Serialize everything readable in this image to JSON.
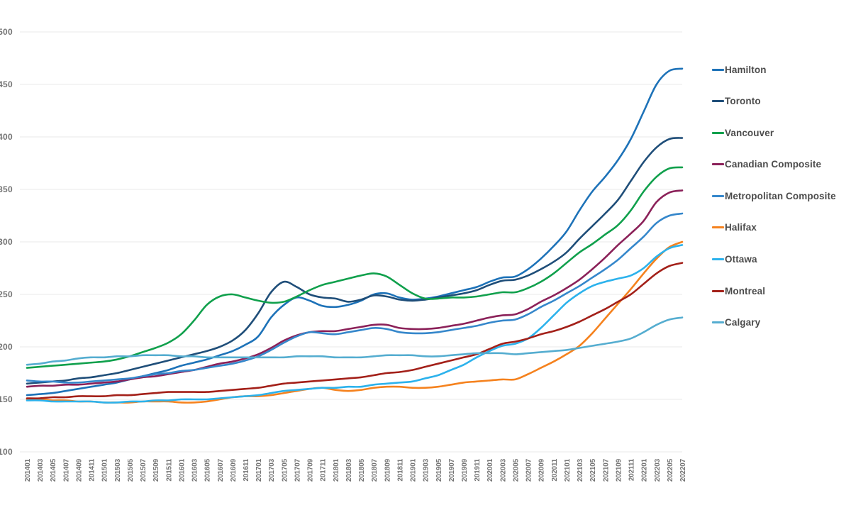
{
  "chart_data": {
    "type": "line",
    "title": "",
    "xlabel": "",
    "ylabel": "",
    "ylim": [
      100,
      500
    ],
    "y_ticks": [
      100,
      150,
      200,
      250,
      300,
      350,
      400,
      450,
      500
    ],
    "grid": "horizontal",
    "legend_position": "right",
    "axis_tick_color": "#757575",
    "gridline_color": "#e9e9e9",
    "x_tick_labels": [
      "201401",
      "201403",
      "201405",
      "201407",
      "201409",
      "201411",
      "201501",
      "201503",
      "201505",
      "201507",
      "201509",
      "201511",
      "201601",
      "201603",
      "201605",
      "201607",
      "201609",
      "201611",
      "201701",
      "201703",
      "201705",
      "201707",
      "201709",
      "201711",
      "201801",
      "201803",
      "201805",
      "201807",
      "201809",
      "201811",
      "201901",
      "201903",
      "201905",
      "201907",
      "201909",
      "201911",
      "202001",
      "202003",
      "202005",
      "202007",
      "202009",
      "202011",
      "202101",
      "202103",
      "202105",
      "202107",
      "202109",
      "202111",
      "202201",
      "202203",
      "202205",
      "202207"
    ],
    "series": [
      {
        "name": "Hamilton",
        "color": "#1d72b8",
        "values": [
          154,
          155,
          156,
          158,
          160,
          162,
          164,
          166,
          169,
          172,
          175,
          178,
          182,
          185,
          188,
          192,
          196,
          202,
          210,
          228,
          240,
          247,
          244,
          239,
          238,
          240,
          244,
          250,
          251,
          247,
          245,
          246,
          248,
          251,
          254,
          257,
          262,
          266,
          267,
          274,
          284,
          296,
          310,
          330,
          348,
          362,
          378,
          398,
          424,
          450,
          463,
          465
        ]
      },
      {
        "name": "Toronto",
        "color": "#1f4e79",
        "values": [
          165,
          166,
          167,
          168,
          170,
          171,
          173,
          175,
          178,
          181,
          184,
          187,
          190,
          193,
          196,
          200,
          206,
          216,
          232,
          252,
          262,
          257,
          250,
          247,
          246,
          243,
          245,
          249,
          248,
          245,
          244,
          245,
          247,
          249,
          251,
          254,
          259,
          263,
          264,
          268,
          274,
          281,
          290,
          303,
          315,
          327,
          340,
          358,
          376,
          390,
          398,
          399
        ]
      },
      {
        "name": "Vancouver",
        "color": "#10a04c",
        "values": [
          180,
          181,
          182,
          183,
          184,
          185,
          186,
          188,
          191,
          195,
          199,
          204,
          212,
          225,
          240,
          248,
          250,
          247,
          244,
          242,
          243,
          248,
          254,
          259,
          262,
          265,
          268,
          270,
          267,
          259,
          251,
          246,
          246,
          247,
          247,
          248,
          250,
          252,
          252,
          256,
          262,
          270,
          280,
          290,
          298,
          307,
          316,
          330,
          348,
          362,
          370,
          371
        ]
      },
      {
        "name": "Canadian Composite",
        "color": "#8b2159",
        "values": [
          162,
          163,
          163,
          164,
          164,
          165,
          166,
          167,
          169,
          171,
          172,
          174,
          176,
          178,
          181,
          184,
          186,
          189,
          193,
          199,
          206,
          211,
          214,
          215,
          215,
          217,
          219,
          221,
          221,
          218,
          217,
          217,
          218,
          220,
          222,
          225,
          228,
          230,
          231,
          236,
          243,
          249,
          256,
          264,
          274,
          285,
          297,
          308,
          320,
          338,
          347,
          349
        ]
      },
      {
        "name": "Metropolitan Composite",
        "color": "#3587cb",
        "values": [
          168,
          167,
          167,
          166,
          166,
          167,
          168,
          169,
          170,
          172,
          174,
          175,
          177,
          178,
          180,
          182,
          184,
          187,
          191,
          197,
          204,
          210,
          214,
          213,
          212,
          214,
          216,
          218,
          217,
          214,
          213,
          213,
          214,
          216,
          218,
          220,
          223,
          225,
          226,
          231,
          238,
          244,
          251,
          258,
          266,
          274,
          283,
          294,
          305,
          318,
          325,
          327
        ]
      },
      {
        "name": "Halifax",
        "color": "#f5821e",
        "values": [
          150,
          150,
          149,
          149,
          148,
          148,
          147,
          147,
          147,
          148,
          148,
          148,
          147,
          147,
          148,
          150,
          152,
          153,
          153,
          154,
          156,
          158,
          160,
          161,
          159,
          158,
          159,
          161,
          162,
          162,
          161,
          161,
          162,
          164,
          166,
          167,
          168,
          169,
          169,
          174,
          180,
          186,
          193,
          201,
          213,
          227,
          241,
          255,
          270,
          284,
          295,
          300
        ]
      },
      {
        "name": "Ottawa",
        "color": "#2cb2ec",
        "values": [
          149,
          149,
          148,
          148,
          148,
          148,
          147,
          147,
          148,
          148,
          149,
          149,
          150,
          150,
          150,
          151,
          152,
          153,
          154,
          156,
          158,
          159,
          160,
          161,
          161,
          162,
          162,
          164,
          165,
          166,
          167,
          170,
          173,
          178,
          183,
          190,
          196,
          201,
          203,
          208,
          218,
          230,
          242,
          251,
          258,
          262,
          265,
          268,
          275,
          286,
          294,
          297
        ]
      },
      {
        "name": "Montreal",
        "color": "#a32019",
        "values": [
          151,
          151,
          152,
          152,
          153,
          153,
          153,
          154,
          154,
          155,
          156,
          157,
          157,
          157,
          157,
          158,
          159,
          160,
          161,
          163,
          165,
          166,
          167,
          168,
          169,
          170,
          171,
          173,
          175,
          176,
          178,
          181,
          184,
          187,
          190,
          193,
          198,
          203,
          205,
          208,
          212,
          215,
          219,
          224,
          230,
          236,
          243,
          250,
          260,
          270,
          277,
          280
        ]
      },
      {
        "name": "Calgary",
        "color": "#55add0",
        "values": [
          183,
          184,
          186,
          187,
          189,
          190,
          190,
          191,
          191,
          192,
          192,
          192,
          191,
          191,
          190,
          190,
          190,
          190,
          190,
          190,
          190,
          191,
          191,
          191,
          190,
          190,
          190,
          191,
          192,
          192,
          192,
          191,
          191,
          192,
          193,
          194,
          194,
          194,
          193,
          194,
          195,
          196,
          197,
          199,
          201,
          203,
          205,
          208,
          214,
          221,
          226,
          228
        ]
      }
    ]
  }
}
